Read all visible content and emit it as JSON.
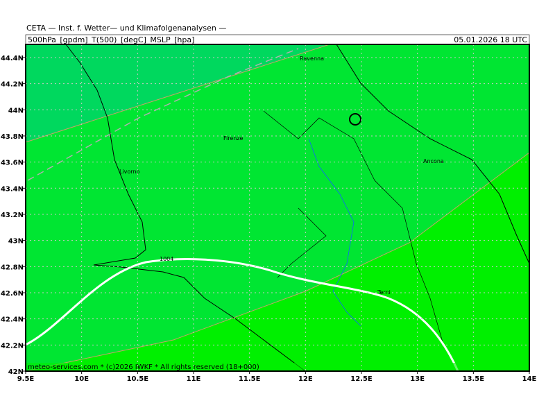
{
  "header": {
    "source": "CETA — Inst. f. Wetter— und Klimafolgenanalysen —",
    "fields": "500hPa_[gpdm]_T(500)_[degC]_MSLP_[hpa]",
    "valid": "05.01.2026 18 UTC"
  },
  "map": {
    "x_labels": [
      "9.5E",
      "10E",
      "10.5E",
      "11E",
      "11.5E",
      "12E",
      "12.5E",
      "13E",
      "13.5E",
      "14E"
    ],
    "y_labels": [
      "42N",
      "42.2N",
      "42.4N",
      "42.6N",
      "42.8N",
      "43N",
      "43.2N",
      "43.4N",
      "43.6N",
      "43.8N",
      "44N",
      "44.2N",
      "44.4N"
    ],
    "places": [
      "Ravenna",
      "Firenze",
      "Livorno",
      "Ancona",
      "Terni"
    ],
    "isobar_label": "1004",
    "footer": "meteo-services.com * (c)2026 IWKF * All rights reserved (18+000)"
  }
}
